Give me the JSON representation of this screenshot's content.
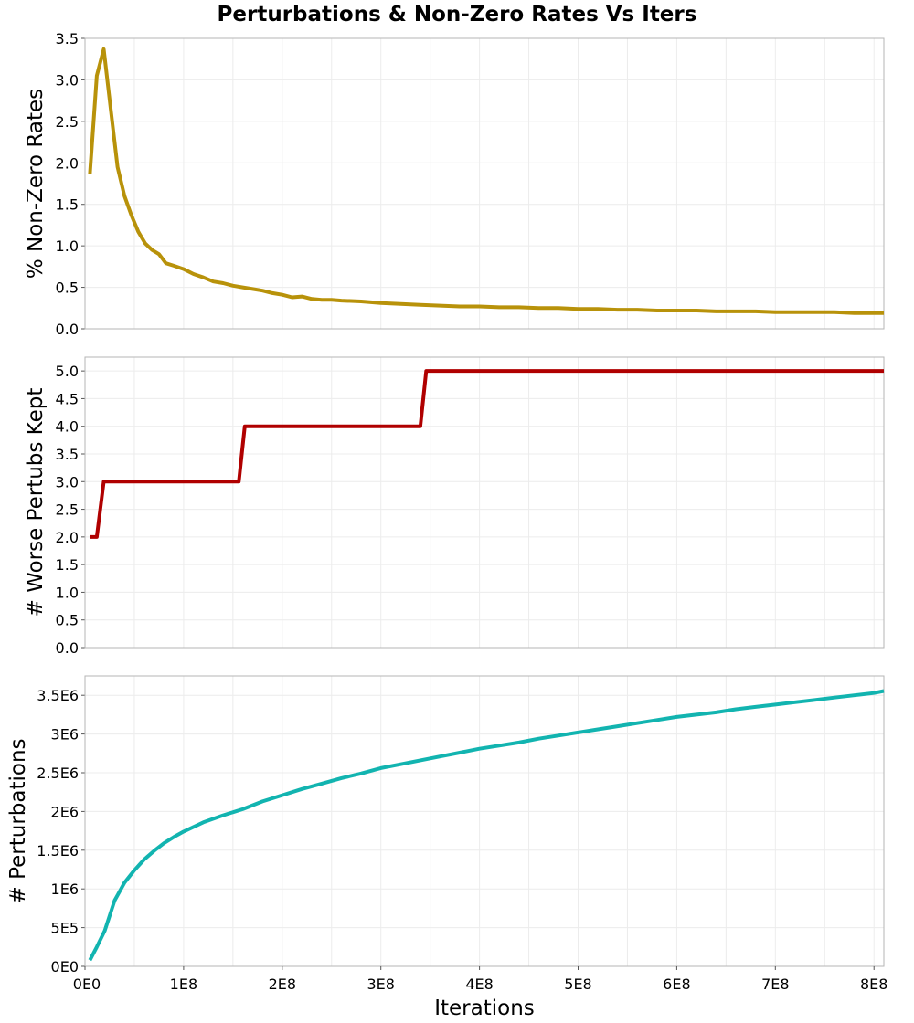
{
  "title": "Perturbations & Non-Zero Rates Vs Iters",
  "chart_data": [
    {
      "type": "line",
      "panel": "top",
      "ylabel": "% Non-Zero Rates",
      "xlim": [
        0,
        810000000
      ],
      "ylim": [
        0,
        3.5
      ],
      "yticks": [
        0,
        0.5,
        1.0,
        1.5,
        2.0,
        2.5,
        3.0,
        3.5
      ],
      "ytick_labels": [
        "0.0",
        "0.5",
        "1.0",
        "1.5",
        "2.0",
        "2.5",
        "3.0",
        "3.5"
      ],
      "grid": true,
      "color": "#b8920a",
      "series": [
        {
          "x": [
            5000000,
            12000000,
            19000000,
            26000000,
            33000000,
            40000000,
            47000000,
            54000000,
            61000000,
            68000000,
            75000000,
            82000000,
            90000000,
            100000000,
            110000000,
            120000000,
            130000000,
            140000000,
            150000000,
            160000000,
            170000000,
            180000000,
            190000000,
            200000000,
            210000000,
            220000000,
            230000000,
            240000000,
            250000000,
            260000000,
            280000000,
            300000000,
            320000000,
            340000000,
            360000000,
            380000000,
            400000000,
            420000000,
            440000000,
            460000000,
            480000000,
            500000000,
            520000000,
            540000000,
            560000000,
            580000000,
            600000000,
            620000000,
            640000000,
            660000000,
            680000000,
            700000000,
            720000000,
            740000000,
            760000000,
            780000000,
            800000000,
            810000000
          ],
          "values": [
            1.87,
            3.05,
            3.37,
            2.65,
            1.95,
            1.6,
            1.37,
            1.17,
            1.03,
            0.95,
            0.9,
            0.79,
            0.76,
            0.72,
            0.66,
            0.62,
            0.57,
            0.55,
            0.52,
            0.5,
            0.48,
            0.46,
            0.43,
            0.41,
            0.38,
            0.39,
            0.36,
            0.35,
            0.35,
            0.34,
            0.33,
            0.31,
            0.3,
            0.29,
            0.28,
            0.27,
            0.27,
            0.26,
            0.26,
            0.25,
            0.25,
            0.24,
            0.24,
            0.23,
            0.23,
            0.22,
            0.22,
            0.22,
            0.21,
            0.21,
            0.21,
            0.2,
            0.2,
            0.2,
            0.2,
            0.19,
            0.19,
            0.19
          ]
        }
      ]
    },
    {
      "type": "line",
      "panel": "middle",
      "ylabel": "# Worse Pertubs Kept",
      "xlim": [
        0,
        810000000
      ],
      "ylim": [
        0,
        5.25
      ],
      "yticks": [
        0,
        0.5,
        1.0,
        1.5,
        2.0,
        2.5,
        3.0,
        3.5,
        4.0,
        4.5,
        5.0
      ],
      "ytick_labels": [
        "0.0",
        "0.5",
        "1.0",
        "1.5",
        "2.0",
        "2.5",
        "3.0",
        "3.5",
        "4.0",
        "4.5",
        "5.0"
      ],
      "grid": true,
      "color": "#b00000",
      "series": [
        {
          "x": [
            5000000,
            12000000,
            19000000,
            156000000,
            162000000,
            340000000,
            346000000,
            810000000
          ],
          "values": [
            2,
            2,
            3,
            3,
            4,
            4,
            5,
            5
          ]
        }
      ]
    },
    {
      "type": "line",
      "panel": "bottom",
      "ylabel": "# Perturbations",
      "xlabel": "Iterations",
      "xlim": [
        0,
        810000000
      ],
      "ylim": [
        0,
        3750000
      ],
      "yticks": [
        0,
        500000,
        1000000,
        1500000,
        2000000,
        2500000,
        3000000,
        3500000
      ],
      "ytick_labels": [
        "0E0",
        "5E5",
        "1E6",
        "1.5E6",
        "2E6",
        "2.5E6",
        "3E6",
        "3.5E6"
      ],
      "xticks": [
        0,
        100000000,
        200000000,
        300000000,
        400000000,
        500000000,
        600000000,
        700000000,
        800000000
      ],
      "xtick_labels": [
        "0E0",
        "1E8",
        "2E8",
        "3E8",
        "4E8",
        "5E8",
        "6E8",
        "7E8",
        "8E8"
      ],
      "grid": true,
      "color": "#12b4b0",
      "series": [
        {
          "x": [
            5000000,
            12000000,
            20000000,
            30000000,
            40000000,
            50000000,
            60000000,
            70000000,
            80000000,
            90000000,
            100000000,
            120000000,
            140000000,
            160000000,
            180000000,
            200000000,
            220000000,
            240000000,
            260000000,
            280000000,
            300000000,
            320000000,
            340000000,
            360000000,
            380000000,
            400000000,
            420000000,
            440000000,
            460000000,
            480000000,
            500000000,
            520000000,
            540000000,
            560000000,
            580000000,
            600000000,
            620000000,
            640000000,
            660000000,
            680000000,
            700000000,
            720000000,
            740000000,
            760000000,
            780000000,
            800000000,
            810000000
          ],
          "values": [
            80000,
            250000,
            460000,
            850000,
            1080000,
            1240000,
            1380000,
            1490000,
            1590000,
            1670000,
            1740000,
            1860000,
            1950000,
            2030000,
            2130000,
            2210000,
            2290000,
            2360000,
            2430000,
            2490000,
            2560000,
            2610000,
            2660000,
            2710000,
            2760000,
            2810000,
            2850000,
            2890000,
            2940000,
            2980000,
            3020000,
            3060000,
            3100000,
            3140000,
            3180000,
            3220000,
            3250000,
            3280000,
            3320000,
            3350000,
            3380000,
            3410000,
            3440000,
            3470000,
            3500000,
            3530000,
            3555000
          ]
        }
      ]
    }
  ]
}
